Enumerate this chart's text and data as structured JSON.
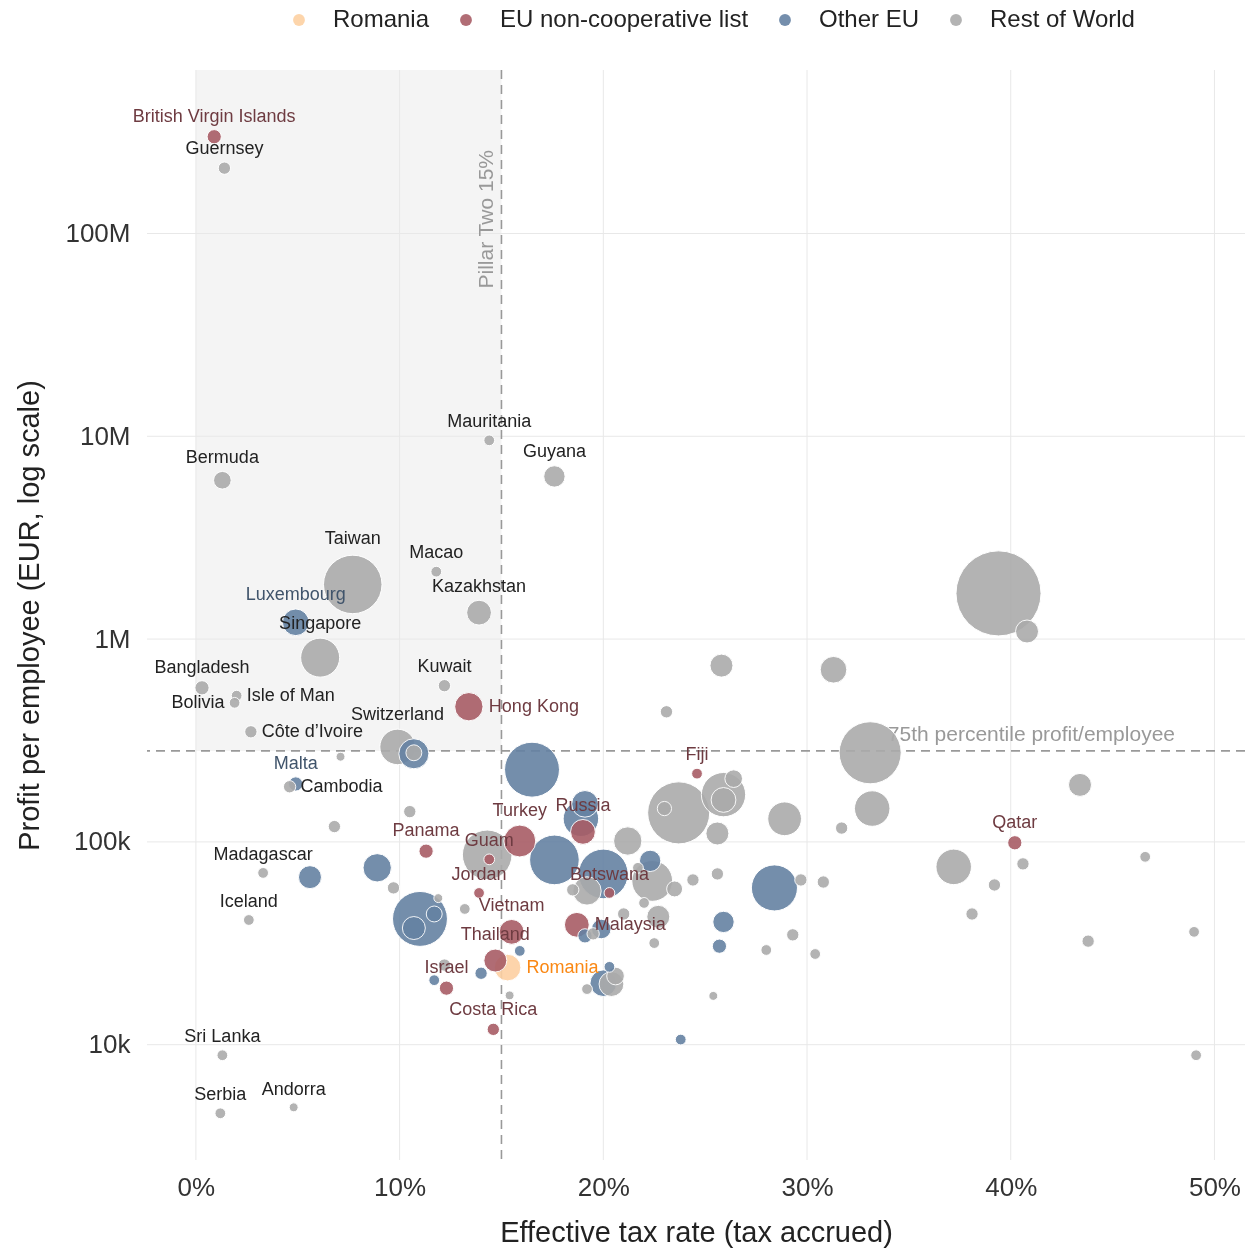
{
  "chart_data": {
    "type": "bubble",
    "xlabel": "Effective tax rate (tax accrued)",
    "ylabel": "Profit per employee (EUR, log scale)",
    "xlim": [
      -2.4,
      51.5
    ],
    "xticks": [
      {
        "value": 0,
        "label": "0%"
      },
      {
        "value": 10,
        "label": "10%"
      },
      {
        "value": 20,
        "label": "20%"
      },
      {
        "value": 30,
        "label": "30%"
      },
      {
        "value": 40,
        "label": "40%"
      },
      {
        "value": 50,
        "label": "50%"
      }
    ],
    "ylim": [
      2700,
      640000000
    ],
    "yticks": [
      {
        "value": 10000,
        "label": "10k"
      },
      {
        "value": 100000,
        "label": "100k"
      },
      {
        "value": 1000000,
        "label": "1M"
      },
      {
        "value": 10000000,
        "label": "10M"
      },
      {
        "value": 100000000,
        "label": "100M"
      }
    ],
    "log": true,
    "grid": true,
    "legend": "top",
    "series": [
      {
        "name": "Romania",
        "color": "#fdd0a2",
        "x": [
          15.3
        ],
        "values": [
          24000
        ],
        "sizes": [
          0.098
        ]
      },
      {
        "name": "EU non-cooperative list",
        "color": "#a85d66",
        "x": [
          0.9,
          13.4,
          11.3,
          14.4,
          13.9,
          15.9,
          19.0,
          24.6,
          40.2,
          20.3,
          15.5,
          18.7,
          14.7,
          12.3,
          14.6
        ],
        "values": [
          300000000,
          464000,
          90000,
          82000,
          56000,
          101000,
          112000,
          217000,
          99000,
          56000,
          36000,
          39000,
          26000,
          19000,
          11900
        ],
        "sizes": [
          0.028,
          0.111,
          0.028,
          0.016,
          0.016,
          0.141,
          0.085,
          0.016,
          0.028,
          0.016,
          0.085,
          0.085,
          0.073,
          0.028,
          0.021
        ]
      },
      {
        "name": "Other EU",
        "color": "#6582a3",
        "x": [
          4.9,
          4.9,
          10.7,
          5.6,
          8.9,
          11.0,
          10.7,
          11.7,
          11.7,
          14.0,
          15.9,
          16.5,
          19.1,
          18.9,
          17.6,
          20.0,
          22.3,
          19.9,
          19.1,
          20.0,
          20.3,
          25.9,
          25.7,
          23.8,
          28.4
        ],
        "values": [
          1210000,
          193000,
          272000,
          67000,
          74500,
          41700,
          37600,
          44100,
          20800,
          22500,
          29000,
          227000,
          154000,
          130000,
          81500,
          69500,
          80600,
          37200,
          34400,
          20100,
          24200,
          40300,
          30600,
          10600,
          59300
        ],
        "sizes": [
          0.098,
          0.028,
          0.125,
          0.073,
          0.111,
          0.417,
          0.073,
          0.035,
          0.016,
          0.021,
          0.016,
          0.417,
          0.098,
          0.174,
          0.34,
          0.34,
          0.063,
          0.053,
          0.028,
          0.098,
          0.016,
          0.063,
          0.028,
          0.016,
          0.293
        ]
      },
      {
        "name": "Rest of World",
        "color": "#ababab",
        "x": [
          1.4,
          1.3,
          14.4,
          17.6,
          7.7,
          11.8,
          13.9,
          6.1,
          0.3,
          2.0,
          1.9,
          2.7,
          12.2,
          9.9,
          10.7,
          7.1,
          4.6,
          10.5,
          6.8,
          3.3,
          2.6,
          1.3,
          1.2,
          4.8,
          9.7,
          11.9,
          13.2,
          14.3,
          12.2,
          15.4,
          21.2,
          21.7,
          22.4,
          23.5,
          22.0,
          22.7,
          21.0,
          24.4,
          25.6,
          22.5,
          25.4,
          23.1,
          23.7,
          23.0,
          25.9,
          25.9,
          25.6,
          26.4,
          19.2,
          18.5,
          19.5,
          20.4,
          20.6,
          19.2,
          25.8,
          31.3,
          33.1,
          33.2,
          31.7,
          28.9,
          37.2,
          39.2,
          38.1,
          29.7,
          30.8,
          28.0,
          29.3,
          30.4,
          39.4,
          40.8,
          43.4,
          40.6,
          46.6,
          43.8,
          49.0,
          49.1
        ],
        "values": [
          210000000,
          6070000,
          9550000,
          6340000,
          1860000,
          2150000,
          1350000,
          810000,
          575000,
          526000,
          485000,
          349000,
          589000,
          294000,
          275000,
          263000,
          187000,
          141000,
          119000,
          70300,
          41200,
          8870,
          4590,
          4910,
          59300,
          52800,
          46700,
          86300,
          24700,
          17500,
          101000,
          74500,
          64200,
          58600,
          50000,
          42700,
          44100,
          64900,
          69500,
          31700,
          17400,
          438000,
          139000,
          146000,
          171000,
          161000,
          110000,
          205000,
          57300,
          58000,
          35200,
          19900,
          21800,
          18800,
          740000,
          706000,
          275000,
          146000,
          117000,
          130000,
          75300,
          61300,
          44100,
          64900,
          63400,
          29300,
          34800,
          28000,
          1680000,
          1090000,
          191000,
          77900,
          84400,
          32400,
          36000,
          8870
        ],
        "sizes": [
          0.021,
          0.043,
          0.016,
          0.063,
          0.473,
          0.016,
          0.085,
          0.21,
          0.028,
          0.016,
          0.016,
          0.021,
          0.021,
          0.174,
          0.035,
          0.011,
          0.021,
          0.021,
          0.021,
          0.016,
          0.016,
          0.016,
          0.016,
          0.011,
          0.021,
          0.011,
          0.016,
          0.34,
          0.021,
          0.011,
          0.111,
          0.016,
          0.23,
          0.035,
          0.016,
          0.073,
          0.021,
          0.021,
          0.021,
          0.016,
          0.011,
          0.021,
          0.532,
          0.028,
          0.271,
          0.085,
          0.073,
          0.043,
          0.111,
          0.021,
          0.021,
          0.085,
          0.043,
          0.016,
          0.073,
          0.098,
          0.532,
          0.174,
          0.021,
          0.157,
          0.174,
          0.021,
          0.021,
          0.021,
          0.021,
          0.016,
          0.021,
          0.016,
          1,
          0.073,
          0.073,
          0.021,
          0.016,
          0.021,
          0.016,
          0.016
        ]
      }
    ],
    "ref_lines": [
      {
        "axis": "x",
        "value": 15,
        "label": "Pillar Two 15%",
        "color": "#999999",
        "line_style": "dashed"
      },
      {
        "axis": "y",
        "value": 281000,
        "label": "75th percentile profit/employee",
        "color": "#999999",
        "line_style": "dashed"
      }
    ],
    "bands": [
      {
        "axis": "x",
        "from": 0,
        "to": 15,
        "color": "#f4f4f4"
      }
    ],
    "annotations": [
      {
        "text": "British Virgin Islands",
        "x": 0.9,
        "y": 300000000
      },
      {
        "text": "Guernsey",
        "x": 1.4,
        "y": 210000000
      },
      {
        "text": "Bermuda",
        "x": 1.3,
        "y": 6070000
      },
      {
        "text": "Mauritania",
        "x": 14.4,
        "y": 9550000
      },
      {
        "text": "Guyana",
        "x": 17.6,
        "y": 6340000
      },
      {
        "text": "Taiwan",
        "x": 7.7,
        "y": 1860000
      },
      {
        "text": "Macao",
        "x": 11.8,
        "y": 2150000
      },
      {
        "text": "Luxembourg",
        "x": 4.9,
        "y": 1210000
      },
      {
        "text": "Kazakhstan",
        "x": 13.9,
        "y": 1350000
      },
      {
        "text": "Singapore",
        "x": 6.1,
        "y": 810000
      },
      {
        "text": "Bangladesh",
        "x": 0.3,
        "y": 575000
      },
      {
        "text": "Kuwait",
        "x": 12.2,
        "y": 589000
      },
      {
        "text": "Isle of Man",
        "x": 2.0,
        "y": 526000
      },
      {
        "text": "Hong Kong",
        "x": 13.4,
        "y": 464000
      },
      {
        "text": "Bolivia",
        "x": 1.9,
        "y": 485000
      },
      {
        "text": "Côte d’Ivoire",
        "x": 2.7,
        "y": 349000
      },
      {
        "text": "Switzerland",
        "x": 9.9,
        "y": 294000
      },
      {
        "text": "Malta",
        "x": 4.9,
        "y": 193000
      },
      {
        "text": "Cambodia",
        "x": 4.6,
        "y": 187000
      },
      {
        "text": "Fiji",
        "x": 24.6,
        "y": 217000
      },
      {
        "text": "Turkey",
        "x": 15.9,
        "y": 101000
      },
      {
        "text": "Russia",
        "x": 19.0,
        "y": 112000
      },
      {
        "text": "Panama",
        "x": 11.3,
        "y": 90000
      },
      {
        "text": "Guam",
        "x": 14.4,
        "y": 82000
      },
      {
        "text": "Qatar",
        "x": 40.2,
        "y": 99000
      },
      {
        "text": "Madagascar",
        "x": 3.3,
        "y": 70300
      },
      {
        "text": "Jordan",
        "x": 13.9,
        "y": 56000
      },
      {
        "text": "Botswana",
        "x": 20.3,
        "y": 56000
      },
      {
        "text": "Iceland",
        "x": 2.6,
        "y": 41200
      },
      {
        "text": "Vietnam",
        "x": 15.5,
        "y": 36000
      },
      {
        "text": "Malaysia",
        "x": 18.7,
        "y": 39000
      },
      {
        "text": "Thailand",
        "x": 14.7,
        "y": 26000
      },
      {
        "text": "Romania",
        "x": 15.3,
        "y": 24000
      },
      {
        "text": "Israel",
        "x": 12.3,
        "y": 19000
      },
      {
        "text": "Costa Rica",
        "x": 14.6,
        "y": 11900
      },
      {
        "text": "Sri Lanka",
        "x": 1.3,
        "y": 8870
      },
      {
        "text": "Serbia",
        "x": 1.2,
        "y": 4590
      },
      {
        "text": "Andorra",
        "x": 4.8,
        "y": 4910
      }
    ]
  }
}
